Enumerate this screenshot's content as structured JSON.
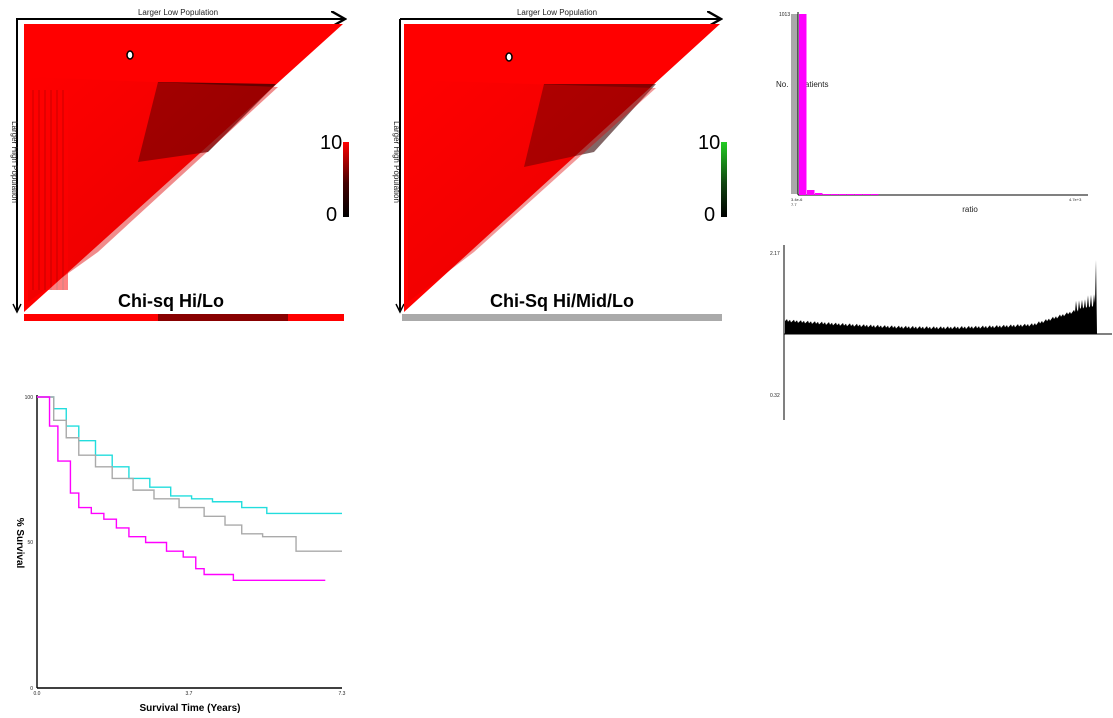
{
  "heatmap_left": {
    "top_axis_label": "Larger Low Population",
    "side_axis_label": "Larger High Population",
    "caption": "Chi-sq Hi/Lo",
    "scale_max": "10",
    "scale_min": "0",
    "colors": {
      "high": "#ff0000",
      "low": "#000000",
      "scale_top": "#22cc22"
    }
  },
  "heatmap_right": {
    "top_axis_label": "Larger Low Population",
    "side_axis_label": "Larger High Population",
    "caption": "Chi-Sq Hi/Mid/Lo",
    "scale_max": "10",
    "scale_min": "0",
    "bottom_bar_color": "#aaaaaa"
  },
  "chart_data": [
    {
      "type": "bar",
      "title": "",
      "xlabel": "ratio",
      "ylabel": "No. of Patients",
      "y_top_tick": "1013",
      "x_left_tick": "3.4e-6",
      "x_left_sub": "7.7",
      "x_right_tick": "4.7e+3",
      "bar_color": "#ff00ff",
      "values": [
        1013,
        28,
        11,
        4,
        3,
        2,
        1,
        1,
        1,
        1
      ]
    },
    {
      "type": "area",
      "title": "",
      "y_top_label": "2.17",
      "y_bottom_label": "0.32",
      "baseline": 1.0,
      "ylim": [
        0.32,
        2.17
      ],
      "fill_color": "#000000"
    },
    {
      "type": "line",
      "title": "",
      "xlabel": "Survival Time (Years)",
      "ylabel": "% Survival",
      "x_ticks": [
        "0.0",
        "3.7",
        "7.3"
      ],
      "y_ticks": [
        "100",
        "50",
        "0"
      ],
      "xlim": [
        0,
        7.3
      ],
      "ylim": [
        0,
        100
      ],
      "series": [
        {
          "color": "#22dddd",
          "points": [
            [
              0,
              100
            ],
            [
              0.2,
              100
            ],
            [
              0.4,
              96
            ],
            [
              0.7,
              90
            ],
            [
              1.0,
              85
            ],
            [
              1.4,
              80
            ],
            [
              1.8,
              76
            ],
            [
              2.2,
              72
            ],
            [
              2.7,
              69
            ],
            [
              3.2,
              66
            ],
            [
              3.7,
              65
            ],
            [
              4.2,
              64
            ],
            [
              4.9,
              62
            ],
            [
              5.5,
              60
            ],
            [
              6.2,
              60
            ],
            [
              7.3,
              60
            ]
          ]
        },
        {
          "color": "#aaaaaa",
          "points": [
            [
              0,
              100
            ],
            [
              0.2,
              100
            ],
            [
              0.4,
              92
            ],
            [
              0.7,
              86
            ],
            [
              1.0,
              80
            ],
            [
              1.4,
              76
            ],
            [
              1.8,
              72
            ],
            [
              2.3,
              68
            ],
            [
              2.8,
              65
            ],
            [
              3.4,
              62
            ],
            [
              4.0,
              59
            ],
            [
              4.5,
              56
            ],
            [
              4.9,
              53
            ],
            [
              5.4,
              52
            ],
            [
              6.2,
              47
            ],
            [
              7.3,
              47
            ]
          ]
        },
        {
          "color": "#ff00ff",
          "points": [
            [
              0,
              100
            ],
            [
              0.2,
              100
            ],
            [
              0.3,
              90
            ],
            [
              0.5,
              78
            ],
            [
              0.8,
              67
            ],
            [
              1.0,
              62
            ],
            [
              1.3,
              60
            ],
            [
              1.6,
              58
            ],
            [
              1.9,
              55
            ],
            [
              2.2,
              52
            ],
            [
              2.6,
              50
            ],
            [
              3.1,
              47
            ],
            [
              3.5,
              45
            ],
            [
              3.8,
              41
            ],
            [
              4.0,
              39
            ],
            [
              4.7,
              37
            ],
            [
              5.5,
              37
            ],
            [
              6.9,
              37
            ]
          ]
        }
      ]
    }
  ]
}
